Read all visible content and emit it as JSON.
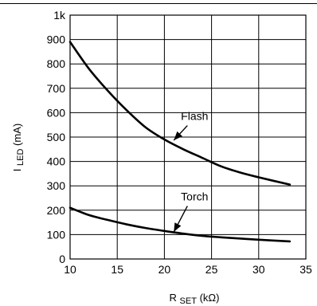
{
  "chart_data": {
    "type": "line",
    "title": "",
    "xlabel": {
      "main": "R",
      "sub": "SET",
      "unit": "(kΩ)"
    },
    "ylabel": {
      "main": "I",
      "sub": "LED",
      "unit": "(mA)"
    },
    "xlim": [
      10,
      35
    ],
    "ylim": [
      0,
      1000
    ],
    "grid": true,
    "x_ticks": [
      10,
      15,
      20,
      25,
      30,
      35
    ],
    "x_tick_labels": [
      "10",
      "15",
      "20",
      "25",
      "30",
      "35"
    ],
    "y_ticks": [
      0,
      100,
      200,
      300,
      400,
      500,
      600,
      700,
      800,
      900,
      1000
    ],
    "y_tick_labels": [
      "0",
      "100",
      "200",
      "300",
      "400",
      "500",
      "600",
      "700",
      "800",
      "900",
      "1k"
    ],
    "series": [
      {
        "name": "Flash",
        "x": [
          10,
          12,
          14,
          16,
          18,
          20,
          22,
          24,
          26,
          28,
          30,
          33.3
        ],
        "y": [
          890,
          780,
          690,
          610,
          540,
          490,
          450,
          415,
          380,
          355,
          335,
          305
        ]
      },
      {
        "name": "Torch",
        "x": [
          10,
          12,
          14,
          16,
          18,
          20,
          22,
          24,
          26,
          28,
          30,
          33.3
        ],
        "y": [
          210,
          180,
          160,
          142,
          127,
          115,
          104,
          95,
          89,
          84,
          79,
          72
        ]
      }
    ],
    "annotations": [
      {
        "text": "Flash",
        "series": "Flash",
        "label_x": 23.2,
        "label_y": 570,
        "arrow_to_x": 21,
        "arrow_to_y": 487
      },
      {
        "text": "Torch",
        "series": "Torch",
        "label_x": 23.2,
        "label_y": 240,
        "arrow_to_x": 21,
        "arrow_to_y": 111
      }
    ]
  }
}
